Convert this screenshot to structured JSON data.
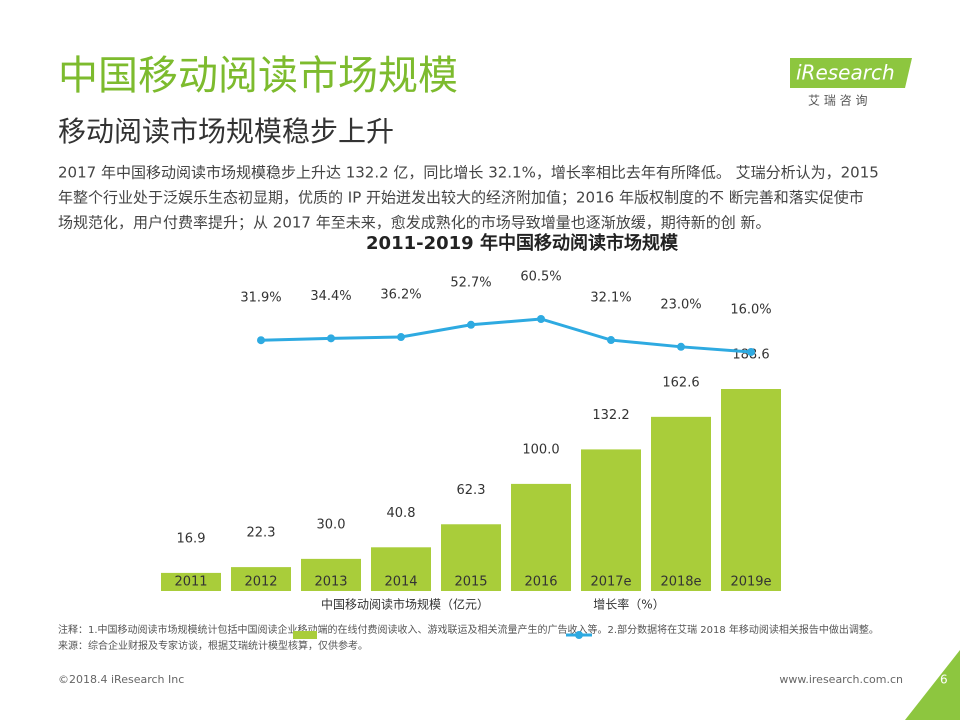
{
  "header": {
    "title": "中国移动阅读市场规模",
    "subtitle": "移动阅读市场规模稳步上升",
    "paragraph": [
      "2017 年中国移动阅读市场规模稳步上升达 132.2 亿，同比增长 32.1%，增长率相比去年有所降低。 艾瑞分析认为，2015",
      "年整个行业处于泛娱乐生态初显期，优质的 IP 开始迸发出较大的经济附加值；2016 年版权制度的不 断完善和落实促使市",
      "场规范化，用户付费率提升；从 2017 年至未来，愈发成熟化的市场导致增量也逐渐放缓，期待新的创 新。"
    ]
  },
  "logo": {
    "name": "iResearch",
    "tagline": "艾 瑞 咨 询"
  },
  "chart_data": {
    "type": "bar-line",
    "title": "2011-2019 年中国移动阅读市场规模",
    "categories": [
      "2011",
      "2012",
      "2013",
      "2014",
      "2015",
      "2016",
      "2017e",
      "2018e",
      "2019e"
    ],
    "series": [
      {
        "name": "中国移动阅读市场规模（亿元）",
        "type": "bar",
        "color": "#a9cd3a",
        "values": [
          16.9,
          22.3,
          30.0,
          40.8,
          62.3,
          100.0,
          132.2,
          162.6,
          188.6
        ],
        "value_labels": [
          "16.9",
          "22.3",
          "30.0",
          "40.8",
          "62.3",
          "100.0",
          "132.2",
          "162.6",
          "188.6"
        ]
      },
      {
        "name": "增长率（%）",
        "type": "line",
        "color": "#2eaae1",
        "values": [
          null,
          31.9,
          34.4,
          36.2,
          52.7,
          60.5,
          32.1,
          23.0,
          16.0
        ],
        "value_labels": [
          null,
          "31.9%",
          "34.4%",
          "36.2%",
          "52.7%",
          "60.5%",
          "32.1%",
          "23.0%",
          "16.0%"
        ]
      }
    ]
  },
  "notes": [
    "注释：1.中国移动阅读市场规模统计包括中国阅读企业移动端的在线付费阅读收入、游戏联运及相关流量产生的广告收入等。2.部分数据将在艾瑞 2018 年移动阅读相关报告中做出调整。",
    "来源：综合企业财报及专家访谈，根据艾瑞统计模型核算，仅供参考。"
  ],
  "footer": {
    "copyright": "©2018.4 iResearch Inc",
    "url": "www.iresearch.com.cn",
    "page": "6"
  }
}
